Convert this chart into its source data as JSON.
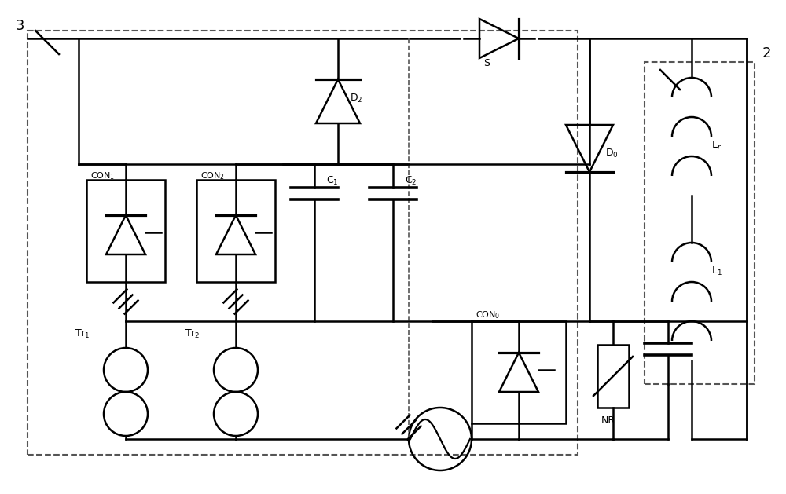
{
  "bg_color": "#ffffff",
  "line_color": "#000000",
  "dashed_color": "#555555",
  "lw": 1.8,
  "fig_width": 10.0,
  "fig_height": 6.29
}
